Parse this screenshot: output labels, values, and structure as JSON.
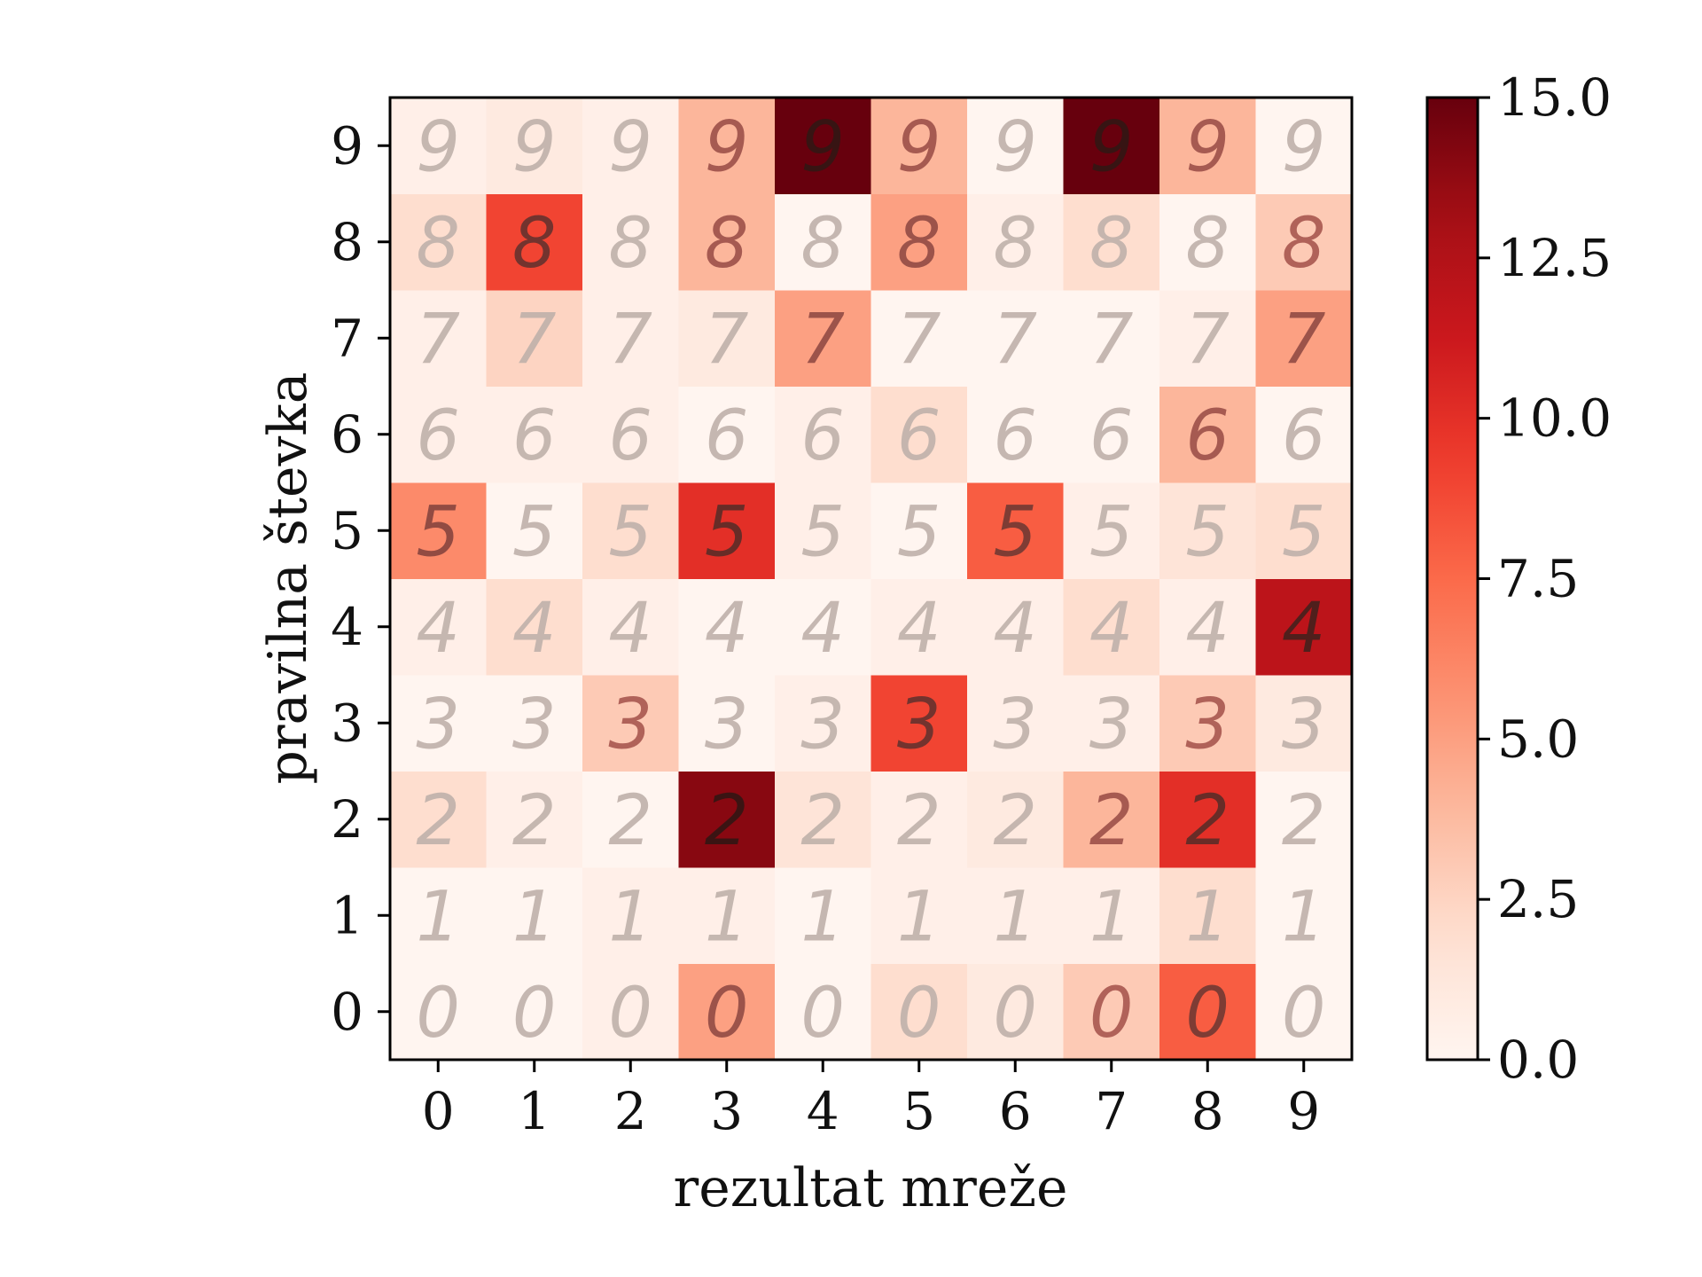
{
  "chart_data": {
    "type": "heatmap",
    "title": "",
    "xlabel": "rezultat mreže",
    "ylabel": "pravilna števka",
    "x_categories": [
      "0",
      "1",
      "2",
      "3",
      "4",
      "5",
      "6",
      "7",
      "8",
      "9"
    ],
    "y_categories": [
      "0",
      "1",
      "2",
      "3",
      "4",
      "5",
      "6",
      "7",
      "8",
      "9"
    ],
    "y_order": "bottom-to-top",
    "values": [
      [
        0,
        0,
        0.5,
        5,
        0,
        2,
        1,
        3,
        8,
        0
      ],
      [
        0,
        0,
        0.5,
        0.5,
        0,
        0.5,
        0.5,
        0.5,
        2,
        0
      ],
      [
        2,
        0.5,
        0,
        14,
        1.5,
        0.5,
        1,
        4,
        10,
        0
      ],
      [
        0,
        0,
        3,
        0,
        0.5,
        9,
        0.5,
        0.5,
        3,
        1
      ],
      [
        0.5,
        2,
        0.5,
        0,
        0,
        0.5,
        0.5,
        2,
        0.5,
        12
      ],
      [
        6,
        0,
        2,
        10,
        0.5,
        0,
        8,
        0.5,
        1.5,
        2
      ],
      [
        0.5,
        0.5,
        0.5,
        0,
        0.5,
        2,
        0,
        0,
        4,
        0
      ],
      [
        0.5,
        2.5,
        0.5,
        1,
        5,
        0,
        0,
        0,
        0.5,
        5
      ],
      [
        2,
        9,
        0.5,
        4,
        0,
        5,
        0.5,
        2,
        0,
        3
      ],
      [
        0.5,
        1,
        0.5,
        4,
        15,
        4,
        0,
        15,
        4,
        0
      ]
    ],
    "colorbar": {
      "colormap": "Reds",
      "range": [
        0,
        15
      ],
      "ticks": [
        "0.0",
        "2.5",
        "5.0",
        "7.5",
        "10.0",
        "12.5",
        "15.0"
      ]
    },
    "grid": false
  }
}
